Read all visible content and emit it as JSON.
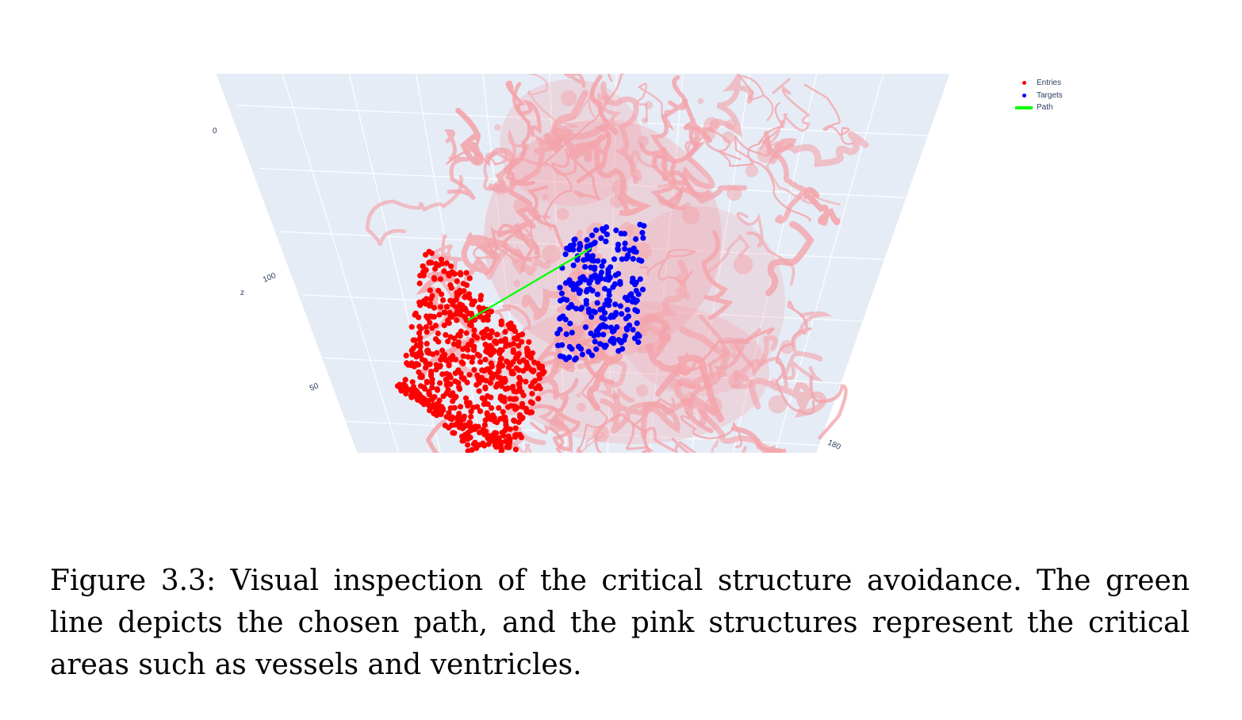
{
  "chart_data": {
    "type": "scatter",
    "subtype": "3d",
    "series": [
      {
        "name": "Entries",
        "color": "#ff0000",
        "marker": "dot"
      },
      {
        "name": "Targets",
        "color": "#0000ff",
        "marker": "dot"
      },
      {
        "name": "Path",
        "color": "#00ff00",
        "marker": "line"
      }
    ],
    "mesh_color": "#f4a3aa",
    "scene_background": "#e5ecf6",
    "axes": {
      "z": {
        "label": "z",
        "ticks": [
          "0",
          "100",
          "50"
        ]
      },
      "x": {
        "ticks": [
          "180"
        ]
      }
    },
    "legend_position": "top-right"
  },
  "caption": {
    "text": "Figure 3.3: Visual inspection of the critical structure avoidance. The green line depicts the chosen path, and the pink structures represent the critical areas such as vessels and ventricles."
  }
}
